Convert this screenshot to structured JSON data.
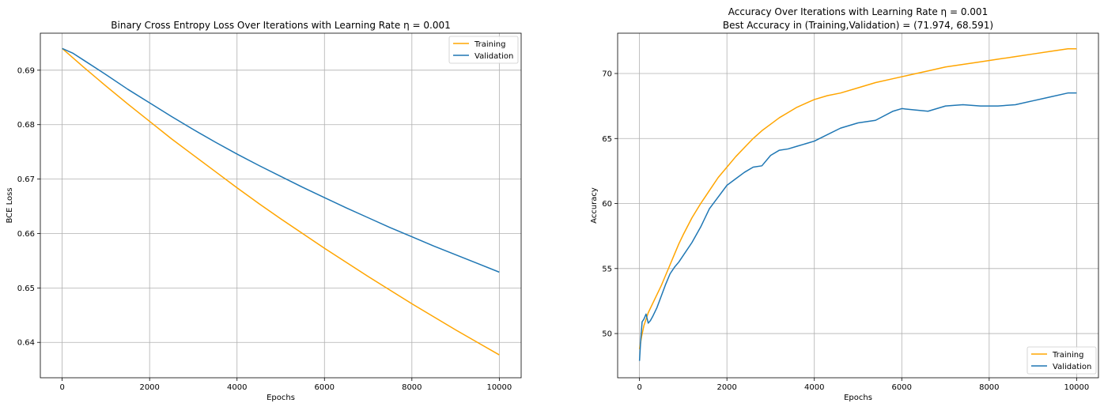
{
  "figure": {
    "background": "#ffffff",
    "colors": {
      "training": "#ffa500",
      "validation": "#1f77b4",
      "grid": "#b0b0b0"
    }
  },
  "chart_data": [
    {
      "type": "line",
      "title": "Binary Cross Entropy Loss Over Iterations with Learning Rate η = 0.001",
      "xlabel": "Epochs",
      "ylabel": "BCE Loss",
      "xlim": [
        -500,
        10500
      ],
      "ylim": [
        0.6335,
        0.6968
      ],
      "xticks": [
        0,
        2000,
        4000,
        6000,
        8000,
        10000
      ],
      "xtick_labels": [
        "0",
        "2000",
        "4000",
        "6000",
        "8000",
        "10000"
      ],
      "yticks": [
        0.64,
        0.65,
        0.66,
        0.67,
        0.68,
        0.69
      ],
      "ytick_labels": [
        "0.64",
        "0.65",
        "0.66",
        "0.67",
        "0.68",
        "0.69"
      ],
      "grid": true,
      "legend_position": "upper-right",
      "series": [
        {
          "name": "Training",
          "color": "#ffa500",
          "x": [
            0,
            500,
            1000,
            1500,
            2000,
            2500,
            3000,
            3500,
            4000,
            4500,
            5000,
            5500,
            6000,
            6500,
            7000,
            7500,
            8000,
            8500,
            9000,
            9500,
            10000
          ],
          "y": [
            0.694,
            0.6905,
            0.6871,
            0.6838,
            0.6806,
            0.6774,
            0.6744,
            0.6714,
            0.6684,
            0.6655,
            0.6627,
            0.66,
            0.6573,
            0.6547,
            0.6521,
            0.6496,
            0.6471,
            0.6447,
            0.6423,
            0.64,
            0.6377
          ]
        },
        {
          "name": "Validation",
          "color": "#1f77b4",
          "x": [
            0,
            250,
            500,
            1000,
            1500,
            2000,
            2500,
            3000,
            3500,
            4000,
            4500,
            5000,
            5500,
            6000,
            6500,
            7000,
            7500,
            8000,
            8500,
            9000,
            9500,
            10000
          ],
          "y": [
            0.694,
            0.6931,
            0.6918,
            0.6892,
            0.6865,
            0.684,
            0.6815,
            0.6791,
            0.6768,
            0.6746,
            0.6725,
            0.6705,
            0.6685,
            0.6666,
            0.6647,
            0.6629,
            0.6611,
            0.6594,
            0.6577,
            0.6561,
            0.6545,
            0.6529
          ]
        }
      ]
    },
    {
      "type": "line",
      "title": "Accuracy Over Iterations with Learning Rate η =  0.001",
      "subtitle": "Best Accuracy in (Training,Validation) = (71.974, 68.591)",
      "xlabel": "Epochs",
      "ylabel": "Accuracy",
      "xlim": [
        -500,
        10500
      ],
      "ylim": [
        46.6,
        73.1
      ],
      "xticks": [
        0,
        2000,
        4000,
        6000,
        8000,
        10000
      ],
      "xtick_labels": [
        "0",
        "2000",
        "4000",
        "6000",
        "8000",
        "10000"
      ],
      "yticks": [
        50,
        55,
        60,
        65,
        70
      ],
      "ytick_labels": [
        "50",
        "55",
        "60",
        "65",
        "70"
      ],
      "grid": true,
      "legend_position": "lower-right",
      "series": [
        {
          "name": "Training",
          "color": "#ffa500",
          "x": [
            0,
            50,
            100,
            200,
            300,
            400,
            500,
            600,
            700,
            800,
            900,
            1000,
            1200,
            1400,
            1600,
            1800,
            2000,
            2200,
            2400,
            2600,
            2800,
            3000,
            3200,
            3400,
            3600,
            3800,
            4000,
            4300,
            4600,
            5000,
            5400,
            5800,
            6200,
            6600,
            7000,
            7400,
            7800,
            8200,
            8600,
            9000,
            9400,
            9800,
            10000
          ],
          "y": [
            48.8,
            49.8,
            50.6,
            51.6,
            52.3,
            53.0,
            53.7,
            54.5,
            55.3,
            56.1,
            56.9,
            57.6,
            58.9,
            60.0,
            61.0,
            62.0,
            62.8,
            63.6,
            64.3,
            65.0,
            65.6,
            66.1,
            66.6,
            67.0,
            67.4,
            67.7,
            68.0,
            68.3,
            68.5,
            68.9,
            69.3,
            69.6,
            69.9,
            70.2,
            70.5,
            70.7,
            70.9,
            71.1,
            71.3,
            71.5,
            71.7,
            71.9,
            71.9
          ]
        },
        {
          "name": "Validation",
          "color": "#1f77b4",
          "x": [
            0,
            30,
            60,
            100,
            150,
            200,
            250,
            300,
            400,
            500,
            600,
            700,
            800,
            900,
            1000,
            1200,
            1400,
            1600,
            1800,
            2000,
            2200,
            2400,
            2600,
            2800,
            3000,
            3200,
            3400,
            3600,
            3800,
            4000,
            4300,
            4600,
            5000,
            5400,
            5800,
            6000,
            6300,
            6600,
            7000,
            7400,
            7800,
            8200,
            8600,
            9000,
            9400,
            9800,
            10000
          ],
          "y": [
            47.9,
            49.6,
            50.9,
            51.1,
            51.5,
            50.8,
            51.0,
            51.3,
            52.0,
            52.9,
            53.8,
            54.6,
            55.1,
            55.5,
            56.0,
            57.0,
            58.2,
            59.6,
            60.5,
            61.4,
            61.9,
            62.4,
            62.8,
            62.9,
            63.7,
            64.1,
            64.2,
            64.4,
            64.6,
            64.8,
            65.3,
            65.8,
            66.2,
            66.4,
            67.1,
            67.3,
            67.2,
            67.1,
            67.5,
            67.6,
            67.5,
            67.5,
            67.6,
            67.9,
            68.2,
            68.5,
            68.5
          ]
        }
      ]
    }
  ]
}
